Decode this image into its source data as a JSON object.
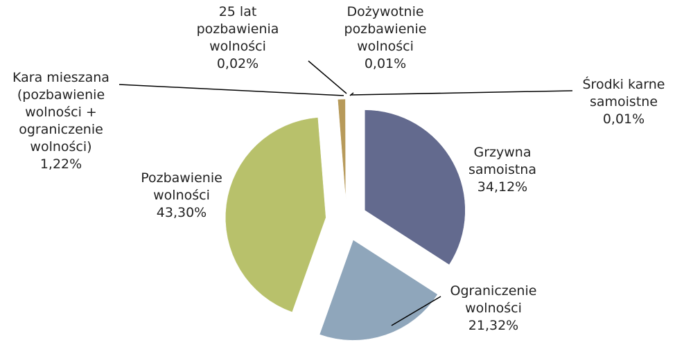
{
  "chart_data": {
    "type": "pie",
    "categories": [
      "Grzywna samoistna",
      "Ograniczenie wolności",
      "Pozbawienie wolności",
      "Kara mieszana (pozbawienie wolności + ograniczenie wolności)",
      "25 lat pozbawienia wolności",
      "Dożywotnie pozbawienie wolności",
      "Środki karne samoistne"
    ],
    "values": [
      34.12,
      21.32,
      43.3,
      1.22,
      0.02,
      0.01,
      0.01
    ],
    "value_labels": [
      "34,12%",
      "21,32%",
      "43,30%",
      "1,22%",
      "0,02%",
      "0,01%",
      "0,01%"
    ],
    "colors": [
      "#636a8e",
      "#8fa6bb",
      "#b8c16b",
      "#b79a5a",
      "#8a7a40",
      "#c9b87a",
      "#7e8aa0"
    ]
  }
}
